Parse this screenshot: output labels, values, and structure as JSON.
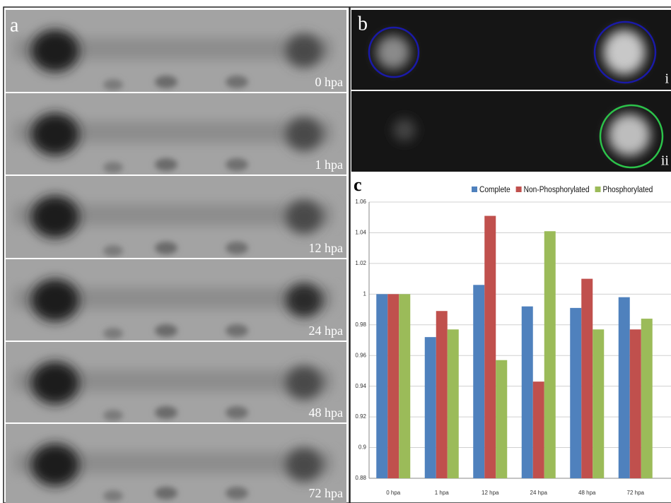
{
  "panels": {
    "a": {
      "label": "a",
      "strips": [
        "0 hpa",
        "1 hpa",
        "12 hpa",
        "24 hpa",
        "48 hpa",
        "72 hpa"
      ]
    },
    "b": {
      "label": "b",
      "sublabels": [
        "i",
        "ii"
      ]
    },
    "c": {
      "label": "c"
    }
  },
  "chart_data": {
    "type": "bar",
    "categories": [
      "0 hpa",
      "1 hpa",
      "12 hpa",
      "24 hpa",
      "48 hpa",
      "72 hpa"
    ],
    "series": [
      {
        "name": "Complete",
        "color": "#4f81bd",
        "values": [
          1,
          0.972,
          1.006,
          0.992,
          0.991,
          0.998
        ]
      },
      {
        "name": "Non-Phosphorylated",
        "color": "#c0504d",
        "values": [
          1,
          0.989,
          1.051,
          0.943,
          1.01,
          0.977
        ]
      },
      {
        "name": "Phosphorylated",
        "color": "#9bbb59",
        "values": [
          1,
          0.977,
          0.957,
          1.041,
          0.977,
          0.984
        ]
      }
    ],
    "ylim": [
      0.88,
      1.06
    ],
    "yticks": [
      0.88,
      0.9,
      0.92,
      0.94,
      0.96,
      0.98,
      1,
      1.02,
      1.04,
      1.06
    ],
    "grid": true,
    "legend": "top"
  }
}
